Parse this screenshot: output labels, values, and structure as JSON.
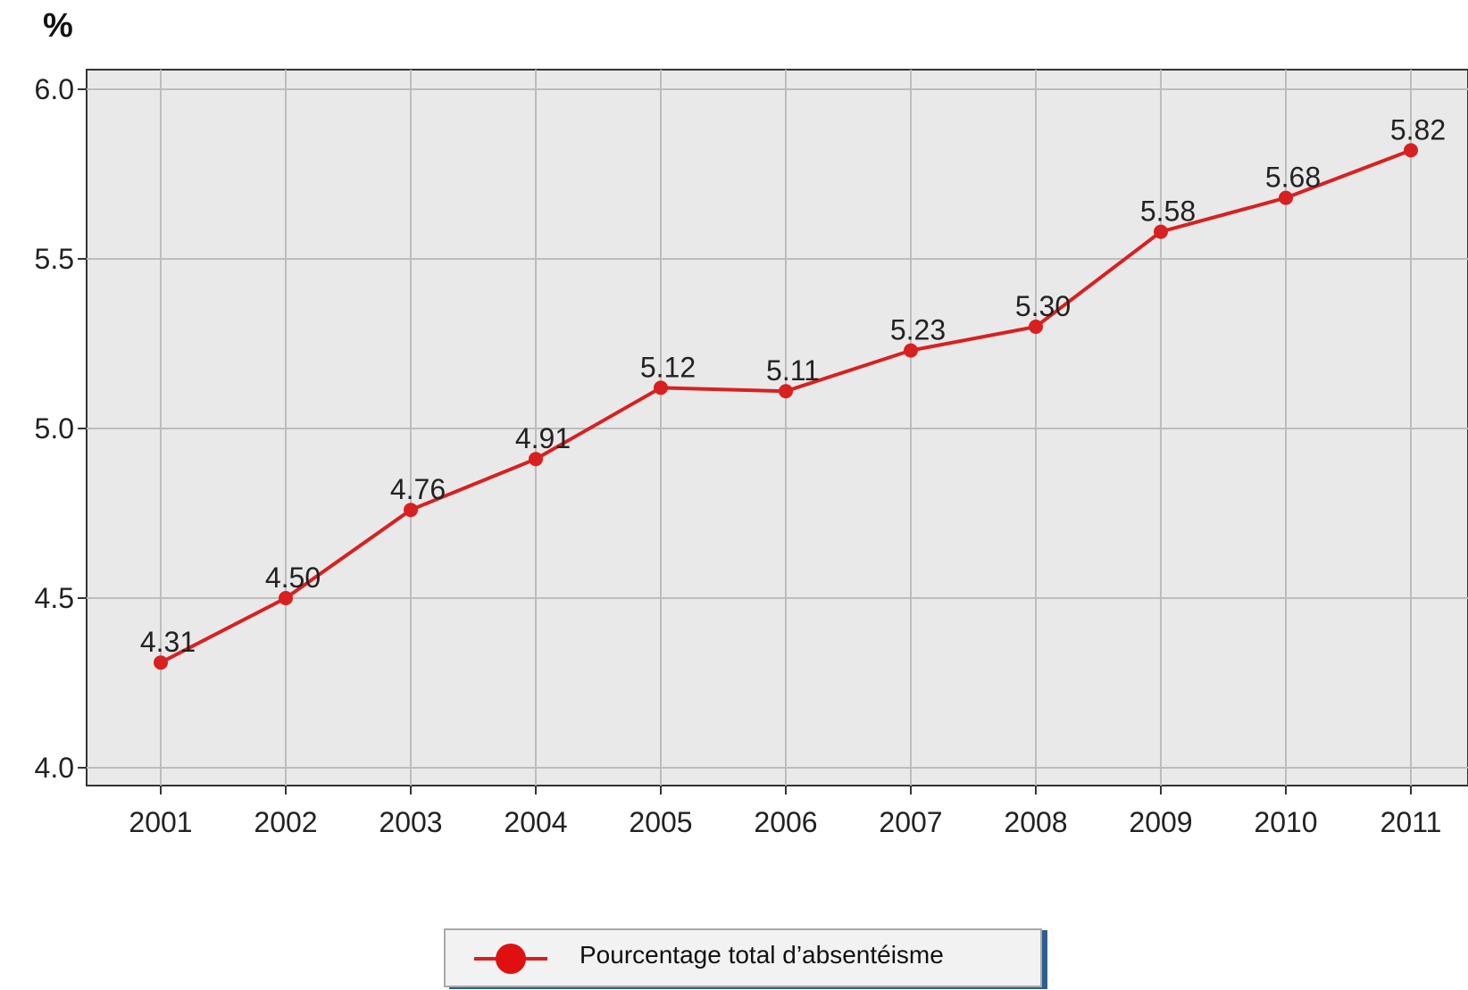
{
  "unit_label": "%",
  "chart_data": {
    "type": "line",
    "title": "",
    "xlabel": "",
    "ylabel": "%",
    "x": [
      "2001",
      "2002",
      "2003",
      "2004",
      "2005",
      "2006",
      "2007",
      "2008",
      "2009",
      "2010",
      "2011"
    ],
    "series": [
      {
        "name": "Pourcentage total d’absentéisme",
        "values": [
          4.31,
          4.5,
          4.76,
          4.91,
          5.12,
          5.11,
          5.23,
          5.3,
          5.58,
          5.68,
          5.82
        ],
        "labels": [
          "4.31",
          "4.50",
          "4.76",
          "4.91",
          "5.12",
          "5.11",
          "5.23",
          "5.30",
          "5.58",
          "5.68",
          "5.82"
        ],
        "color": "#d92020"
      }
    ],
    "ylim": [
      4.0,
      6.0
    ],
    "yticks": [
      "4.0",
      "4.5",
      "5.0",
      "5.5",
      "6.0"
    ],
    "grid": true,
    "legend_position": "bottom",
    "plot_background": "#e9e9e9",
    "grid_color": "#bdbdbd"
  }
}
